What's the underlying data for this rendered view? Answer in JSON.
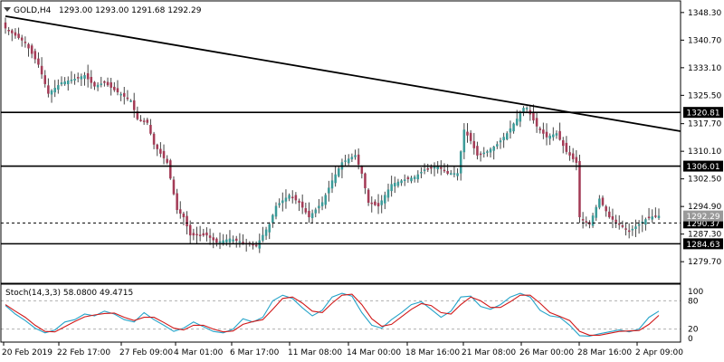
{
  "header": {
    "symbol": "GOLD,H4",
    "ohlc": "1293.00 1293.00 1291.68 1292.29",
    "collapse_icon": "triangle-down-icon"
  },
  "colors": {
    "up_candle": "#3a9a98",
    "down_candle": "#a33a55",
    "wick": "#444444",
    "level_line": "#000000",
    "stoch_main": "#26a4c9",
    "stoch_signal": "#d11919",
    "label_bg": "#000000",
    "label_text": "#ffffff"
  },
  "chart_data": [
    {
      "type": "candlestick",
      "title": "GOLD,H4",
      "y_ticks": [
        "1348.30",
        "1340.70",
        "1333.10",
        "1325.50",
        "1317.70",
        "1310.10",
        "1302.50",
        "1294.90",
        "1287.30",
        "1279.70"
      ],
      "x_ticks": [
        "20 Feb 2019",
        "22 Feb 17:00",
        "27 Feb 09:00",
        "4 Mar 01:00",
        "6 Mar 17:00",
        "11 Mar 08:00",
        "14 Mar 00:00",
        "18 Mar 16:00",
        "21 Mar 08:00",
        "26 Mar 00:00",
        "28 Mar 16:00",
        "2 Apr 09:00"
      ],
      "ylim": [
        1277.0,
        1351.0
      ],
      "levels": [
        {
          "value": 1320.81,
          "label": "1320.81",
          "style": "solid"
        },
        {
          "value": 1306.01,
          "label": "1306.01",
          "style": "solid"
        },
        {
          "value": 1290.37,
          "label": "1290.37",
          "style": "dashed"
        },
        {
          "value": 1284.63,
          "label": "1284.63",
          "style": "solid"
        }
      ],
      "current_price": {
        "value": 1292.29,
        "label": "1292.29"
      },
      "trendline": [
        {
          "x": 0,
          "y": 1347.3
        },
        {
          "x": 208,
          "y": 1315.1
        }
      ],
      "close_path": [
        {
          "x": 0,
          "y": 1344
        },
        {
          "x": 6,
          "y": 1340
        },
        {
          "x": 10,
          "y": 1334
        },
        {
          "x": 13,
          "y": 1326
        },
        {
          "x": 17,
          "y": 1329
        },
        {
          "x": 21,
          "y": 1330
        },
        {
          "x": 24,
          "y": 1331
        },
        {
          "x": 27,
          "y": 1328
        },
        {
          "x": 30,
          "y": 1329
        },
        {
          "x": 33,
          "y": 1327
        },
        {
          "x": 38,
          "y": 1324
        },
        {
          "x": 40,
          "y": 1319
        },
        {
          "x": 43,
          "y": 1318
        },
        {
          "x": 45,
          "y": 1312
        },
        {
          "x": 49,
          "y": 1307
        },
        {
          "x": 52,
          "y": 1294
        },
        {
          "x": 54,
          "y": 1292
        },
        {
          "x": 56,
          "y": 1287
        },
        {
          "x": 61,
          "y": 1287
        },
        {
          "x": 64,
          "y": 1285
        },
        {
          "x": 68,
          "y": 1286
        },
        {
          "x": 72,
          "y": 1285
        },
        {
          "x": 76,
          "y": 1284
        },
        {
          "x": 80,
          "y": 1290
        },
        {
          "x": 82,
          "y": 1295
        },
        {
          "x": 86,
          "y": 1298
        },
        {
          "x": 89,
          "y": 1296
        },
        {
          "x": 92,
          "y": 1292
        },
        {
          "x": 96,
          "y": 1296
        },
        {
          "x": 99,
          "y": 1302
        },
        {
          "x": 102,
          "y": 1307
        },
        {
          "x": 106,
          "y": 1309
        },
        {
          "x": 108,
          "y": 1304
        },
        {
          "x": 110,
          "y": 1296
        },
        {
          "x": 113,
          "y": 1295
        },
        {
          "x": 117,
          "y": 1301
        },
        {
          "x": 120,
          "y": 1302
        },
        {
          "x": 124,
          "y": 1303
        },
        {
          "x": 127,
          "y": 1305
        },
        {
          "x": 131,
          "y": 1306
        },
        {
          "x": 134,
          "y": 1304
        },
        {
          "x": 137,
          "y": 1304
        },
        {
          "x": 139,
          "y": 1316
        },
        {
          "x": 141,
          "y": 1313
        },
        {
          "x": 143,
          "y": 1309
        },
        {
          "x": 146,
          "y": 1310
        },
        {
          "x": 149,
          "y": 1312
        },
        {
          "x": 152,
          "y": 1315
        },
        {
          "x": 155,
          "y": 1319
        },
        {
          "x": 157,
          "y": 1322
        },
        {
          "x": 158,
          "y": 1322
        },
        {
          "x": 161,
          "y": 1317
        },
        {
          "x": 164,
          "y": 1314
        },
        {
          "x": 167,
          "y": 1315
        },
        {
          "x": 170,
          "y": 1310
        },
        {
          "x": 173,
          "y": 1307
        },
        {
          "x": 174,
          "y": 1292
        },
        {
          "x": 177,
          "y": 1290
        },
        {
          "x": 180,
          "y": 1297
        },
        {
          "x": 183,
          "y": 1292
        },
        {
          "x": 186,
          "y": 1290
        },
        {
          "x": 189,
          "y": 1288
        },
        {
          "x": 192,
          "y": 1290
        },
        {
          "x": 195,
          "y": 1292
        },
        {
          "x": 198,
          "y": 1292.29
        }
      ],
      "stochastic": {
        "label": "Stoch(14,3,3) 58.0800 49.4715",
        "ylim": [
          0,
          100
        ],
        "y_ticks": [
          "100",
          "80",
          "20",
          "0"
        ],
        "levels": [
          80,
          20
        ],
        "main": [
          {
            "x": 0,
            "y": 70
          },
          {
            "x": 3,
            "y": 52
          },
          {
            "x": 6,
            "y": 38
          },
          {
            "x": 9,
            "y": 22
          },
          {
            "x": 12,
            "y": 12
          },
          {
            "x": 15,
            "y": 18
          },
          {
            "x": 18,
            "y": 35
          },
          {
            "x": 21,
            "y": 40
          },
          {
            "x": 24,
            "y": 52
          },
          {
            "x": 27,
            "y": 48
          },
          {
            "x": 30,
            "y": 58
          },
          {
            "x": 33,
            "y": 52
          },
          {
            "x": 36,
            "y": 40
          },
          {
            "x": 39,
            "y": 35
          },
          {
            "x": 42,
            "y": 55
          },
          {
            "x": 45,
            "y": 40
          },
          {
            "x": 48,
            "y": 28
          },
          {
            "x": 51,
            "y": 15
          },
          {
            "x": 54,
            "y": 22
          },
          {
            "x": 57,
            "y": 35
          },
          {
            "x": 60,
            "y": 25
          },
          {
            "x": 63,
            "y": 15
          },
          {
            "x": 66,
            "y": 12
          },
          {
            "x": 69,
            "y": 20
          },
          {
            "x": 72,
            "y": 42
          },
          {
            "x": 75,
            "y": 35
          },
          {
            "x": 78,
            "y": 45
          },
          {
            "x": 81,
            "y": 80
          },
          {
            "x": 84,
            "y": 92
          },
          {
            "x": 87,
            "y": 85
          },
          {
            "x": 90,
            "y": 65
          },
          {
            "x": 93,
            "y": 48
          },
          {
            "x": 96,
            "y": 60
          },
          {
            "x": 99,
            "y": 88
          },
          {
            "x": 102,
            "y": 96
          },
          {
            "x": 105,
            "y": 90
          },
          {
            "x": 108,
            "y": 55
          },
          {
            "x": 111,
            "y": 28
          },
          {
            "x": 114,
            "y": 22
          },
          {
            "x": 117,
            "y": 40
          },
          {
            "x": 120,
            "y": 55
          },
          {
            "x": 123,
            "y": 72
          },
          {
            "x": 126,
            "y": 78
          },
          {
            "x": 129,
            "y": 62
          },
          {
            "x": 132,
            "y": 45
          },
          {
            "x": 135,
            "y": 58
          },
          {
            "x": 138,
            "y": 88
          },
          {
            "x": 141,
            "y": 90
          },
          {
            "x": 144,
            "y": 68
          },
          {
            "x": 147,
            "y": 62
          },
          {
            "x": 150,
            "y": 72
          },
          {
            "x": 153,
            "y": 88
          },
          {
            "x": 156,
            "y": 96
          },
          {
            "x": 159,
            "y": 88
          },
          {
            "x": 162,
            "y": 60
          },
          {
            "x": 165,
            "y": 48
          },
          {
            "x": 168,
            "y": 45
          },
          {
            "x": 171,
            "y": 28
          },
          {
            "x": 174,
            "y": 6
          },
          {
            "x": 177,
            "y": 5
          },
          {
            "x": 180,
            "y": 10
          },
          {
            "x": 183,
            "y": 14
          },
          {
            "x": 186,
            "y": 18
          },
          {
            "x": 189,
            "y": 14
          },
          {
            "x": 192,
            "y": 20
          },
          {
            "x": 195,
            "y": 45
          },
          {
            "x": 198,
            "y": 58
          }
        ],
        "signal": [
          {
            "x": 0,
            "y": 72
          },
          {
            "x": 3,
            "y": 58
          },
          {
            "x": 6,
            "y": 45
          },
          {
            "x": 9,
            "y": 28
          },
          {
            "x": 12,
            "y": 15
          },
          {
            "x": 15,
            "y": 14
          },
          {
            "x": 18,
            "y": 25
          },
          {
            "x": 21,
            "y": 36
          },
          {
            "x": 24,
            "y": 46
          },
          {
            "x": 27,
            "y": 50
          },
          {
            "x": 30,
            "y": 53
          },
          {
            "x": 33,
            "y": 54
          },
          {
            "x": 36,
            "y": 45
          },
          {
            "x": 39,
            "y": 38
          },
          {
            "x": 42,
            "y": 45
          },
          {
            "x": 45,
            "y": 45
          },
          {
            "x": 48,
            "y": 34
          },
          {
            "x": 51,
            "y": 22
          },
          {
            "x": 54,
            "y": 18
          },
          {
            "x": 57,
            "y": 28
          },
          {
            "x": 60,
            "y": 28
          },
          {
            "x": 63,
            "y": 20
          },
          {
            "x": 66,
            "y": 14
          },
          {
            "x": 69,
            "y": 16
          },
          {
            "x": 72,
            "y": 30
          },
          {
            "x": 75,
            "y": 36
          },
          {
            "x": 78,
            "y": 40
          },
          {
            "x": 81,
            "y": 62
          },
          {
            "x": 84,
            "y": 85
          },
          {
            "x": 87,
            "y": 88
          },
          {
            "x": 90,
            "y": 75
          },
          {
            "x": 93,
            "y": 58
          },
          {
            "x": 96,
            "y": 55
          },
          {
            "x": 99,
            "y": 75
          },
          {
            "x": 102,
            "y": 92
          },
          {
            "x": 105,
            "y": 94
          },
          {
            "x": 108,
            "y": 72
          },
          {
            "x": 111,
            "y": 42
          },
          {
            "x": 114,
            "y": 26
          },
          {
            "x": 117,
            "y": 30
          },
          {
            "x": 120,
            "y": 46
          },
          {
            "x": 123,
            "y": 62
          },
          {
            "x": 126,
            "y": 74
          },
          {
            "x": 129,
            "y": 70
          },
          {
            "x": 132,
            "y": 55
          },
          {
            "x": 135,
            "y": 52
          },
          {
            "x": 138,
            "y": 72
          },
          {
            "x": 141,
            "y": 88
          },
          {
            "x": 144,
            "y": 80
          },
          {
            "x": 147,
            "y": 66
          },
          {
            "x": 150,
            "y": 66
          },
          {
            "x": 153,
            "y": 78
          },
          {
            "x": 156,
            "y": 92
          },
          {
            "x": 159,
            "y": 92
          },
          {
            "x": 162,
            "y": 75
          },
          {
            "x": 165,
            "y": 55
          },
          {
            "x": 168,
            "y": 47
          },
          {
            "x": 171,
            "y": 38
          },
          {
            "x": 174,
            "y": 15
          },
          {
            "x": 177,
            "y": 7
          },
          {
            "x": 180,
            "y": 7
          },
          {
            "x": 183,
            "y": 11
          },
          {
            "x": 186,
            "y": 15
          },
          {
            "x": 189,
            "y": 16
          },
          {
            "x": 192,
            "y": 17
          },
          {
            "x": 195,
            "y": 30
          },
          {
            "x": 198,
            "y": 49
          }
        ]
      }
    }
  ]
}
